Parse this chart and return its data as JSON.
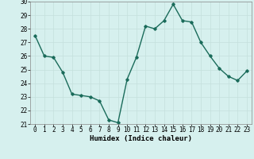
{
  "x": [
    0,
    1,
    2,
    3,
    4,
    5,
    6,
    7,
    8,
    9,
    10,
    11,
    12,
    13,
    14,
    15,
    16,
    17,
    18,
    19,
    20,
    21,
    22,
    23
  ],
  "y": [
    27.5,
    26.0,
    25.9,
    24.8,
    23.2,
    23.1,
    23.0,
    22.7,
    21.3,
    21.1,
    24.3,
    25.9,
    28.2,
    28.0,
    28.6,
    29.8,
    28.6,
    28.5,
    27.0,
    26.0,
    25.1,
    24.5,
    24.2,
    24.9
  ],
  "line_color": "#1a6b5a",
  "marker": "D",
  "marker_size": 1.8,
  "bg_color": "#d6f0ee",
  "grid_color": "#c4e0dc",
  "xlabel": "Humidex (Indice chaleur)",
  "ylim": [
    21,
    30
  ],
  "yticks": [
    21,
    22,
    23,
    24,
    25,
    26,
    27,
    28,
    29,
    30
  ],
  "xticks": [
    0,
    1,
    2,
    3,
    4,
    5,
    6,
    7,
    8,
    9,
    10,
    11,
    12,
    13,
    14,
    15,
    16,
    17,
    18,
    19,
    20,
    21,
    22,
    23
  ],
  "tick_fontsize": 5.5,
  "xlabel_fontsize": 6.5,
  "line_width": 1.0
}
